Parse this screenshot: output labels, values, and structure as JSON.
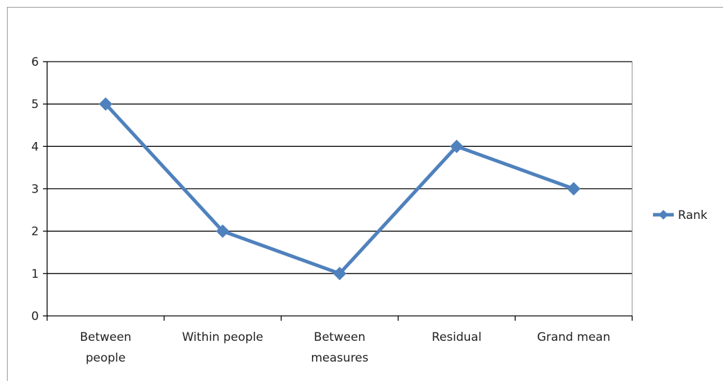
{
  "chart_data": {
    "type": "line",
    "categories": [
      [
        "Between",
        "people"
      ],
      [
        "Within people"
      ],
      [
        "Between",
        "measures"
      ],
      [
        "Residual"
      ],
      [
        "Grand mean"
      ]
    ],
    "series": [
      {
        "name": "Rank",
        "values": [
          5,
          2,
          1,
          4,
          3
        ],
        "color": "#4f81bd"
      }
    ],
    "ylim": [
      0,
      6
    ],
    "yticks": [
      0,
      1,
      2,
      3,
      4,
      5,
      6
    ],
    "grid": true,
    "legend": "right",
    "title": "",
    "xlabel": "",
    "ylabel": ""
  }
}
